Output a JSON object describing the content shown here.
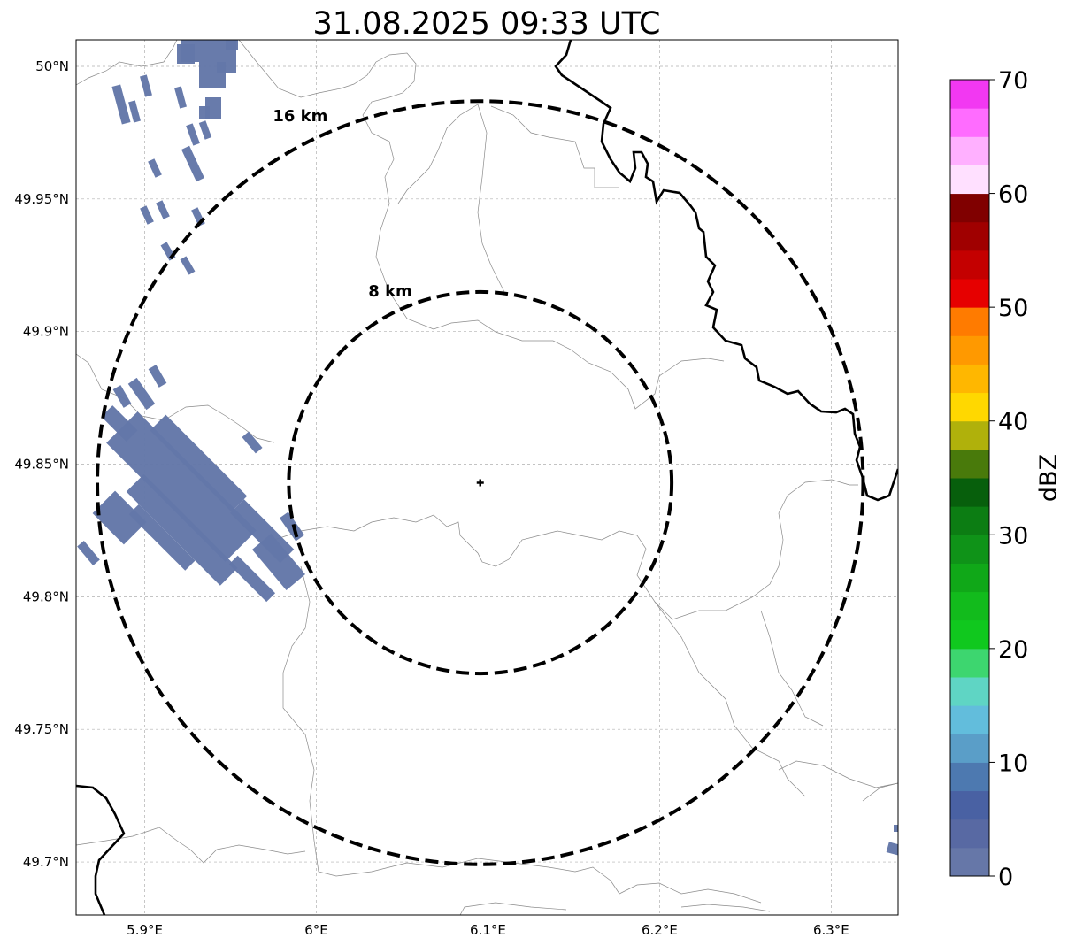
{
  "title": "31.08.2025 09:33 UTC",
  "x_ticks": [
    {
      "lon": 5.9,
      "label": "5.9°E"
    },
    {
      "lon": 6.0,
      "label": "6°E"
    },
    {
      "lon": 6.1,
      "label": "6.1°E"
    },
    {
      "lon": 6.2,
      "label": "6.2°E"
    },
    {
      "lon": 6.3,
      "label": "6.3°E"
    }
  ],
  "y_ticks": [
    {
      "lat": 50.0,
      "label": "50°N"
    },
    {
      "lat": 49.95,
      "label": "49.95°N"
    },
    {
      "lat": 49.9,
      "label": "49.9°N"
    },
    {
      "lat": 49.85,
      "label": "49.85°N"
    },
    {
      "lat": 49.8,
      "label": "49.8°N"
    },
    {
      "lat": 49.75,
      "label": "49.75°N"
    },
    {
      "lat": 49.7,
      "label": "49.7°N"
    }
  ],
  "extent": {
    "lon_min": 5.86,
    "lon_max": 6.339,
    "lat_min": 49.68,
    "lat_max": 50.01
  },
  "center": {
    "lon": 6.0955,
    "lat": 49.843
  },
  "range_rings": [
    {
      "label": "8 km",
      "radius_km": 8
    },
    {
      "label": "16 km",
      "radius_km": 16
    }
  ],
  "colorbar": {
    "label": "dBZ",
    "min": 0,
    "max": 70,
    "ticks": [
      "0",
      "10",
      "20",
      "30",
      "40",
      "50",
      "60",
      "70"
    ],
    "colors": [
      "#6677a8",
      "#5869a3",
      "#4961a3",
      "#4d79b0",
      "#5a9ec8",
      "#62bddc",
      "#5fd5c4",
      "#3dd66f",
      "#10c81e",
      "#12bb1c",
      "#10a818",
      "#0f9318",
      "#0c7d13",
      "#075f0c",
      "#497a0b",
      "#b0b10b",
      "#ffd800",
      "#ffb700",
      "#ff9900",
      "#ff7b00",
      "#e60000",
      "#c40000",
      "#a00000",
      "#800000",
      "#ffe0ff",
      "#ffb0ff",
      "#ff6cff",
      "#f238f2"
    ]
  },
  "echoes": [
    {
      "area": "western cluster",
      "lat": 49.84,
      "lon": 5.93,
      "dbz_range": [
        0,
        5
      ]
    },
    {
      "area": "northwest",
      "lat": 49.98,
      "lon": 5.93,
      "dbz_range": [
        0,
        5
      ]
    },
    {
      "area": "southeast edge",
      "lat": 49.705,
      "lon": 6.335,
      "dbz_range": [
        0,
        5
      ]
    }
  ]
}
